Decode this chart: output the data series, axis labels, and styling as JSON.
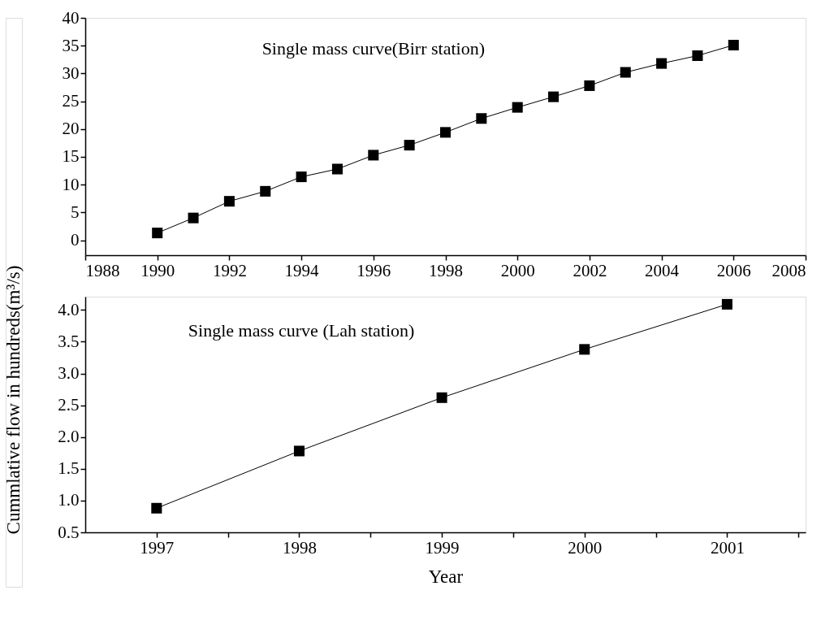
{
  "chart_data": [
    {
      "type": "line",
      "title": "Single mass curve(Birr station)",
      "ylabel": "Cummlative flow in hundreds(m³/s)",
      "x": [
        1990,
        1991,
        1992,
        1993,
        1994,
        1995,
        1996,
        1997,
        1998,
        1999,
        2000,
        2001,
        2002,
        2003,
        2004,
        2005,
        2006
      ],
      "series": [
        {
          "color": "#000000",
          "values": [
            1.3,
            4.0,
            7.0,
            8.8,
            11.4,
            12.8,
            15.3,
            17.1,
            19.4,
            21.9,
            23.9,
            25.8,
            27.8,
            30.2,
            31.8,
            33.2,
            35.1
          ]
        }
      ],
      "xlim": [
        1988,
        2008
      ],
      "xticks": [
        1988,
        1990,
        1992,
        1994,
        1996,
        1998,
        2000,
        2002,
        2004,
        2006,
        2008
      ],
      "ylim": [
        -2.7,
        40
      ],
      "yticks": [
        0,
        5,
        10,
        15,
        20,
        25,
        30,
        35,
        40
      ],
      "marker": "square",
      "line_style": "solid",
      "grid": false
    },
    {
      "type": "line",
      "title": "Single mass curve (Lah station)",
      "xlabel": "Year",
      "x": [
        1997,
        1998,
        1999,
        2000,
        2001
      ],
      "series": [
        {
          "color": "#000000",
          "values": [
            0.88,
            1.78,
            2.62,
            3.38,
            4.09
          ]
        }
      ],
      "xlim": [
        1996.5,
        2001.55
      ],
      "xticks": [
        1997,
        {
          "value": 1997.5,
          "label": null
        },
        1998,
        {
          "value": 1998.5,
          "label": null
        },
        1999,
        {
          "value": 1999.5,
          "label": null
        },
        2000,
        {
          "value": 2000.5,
          "label": null
        },
        2001,
        {
          "value": 2001.5,
          "label": null
        }
      ],
      "ylim": [
        0.5,
        4.21
      ],
      "yticks": [
        {
          "value": 0.5,
          "label": "0.5"
        },
        {
          "value": 1.0,
          "label": "1.0"
        },
        1.5,
        {
          "value": 2.0,
          "label": "2.0"
        },
        2.5,
        {
          "value": 3.0,
          "label": "3.0"
        },
        3.5,
        {
          "value": 4.0,
          "label": "4.0"
        }
      ],
      "marker": "square",
      "line_style": "solid",
      "grid": false
    }
  ]
}
